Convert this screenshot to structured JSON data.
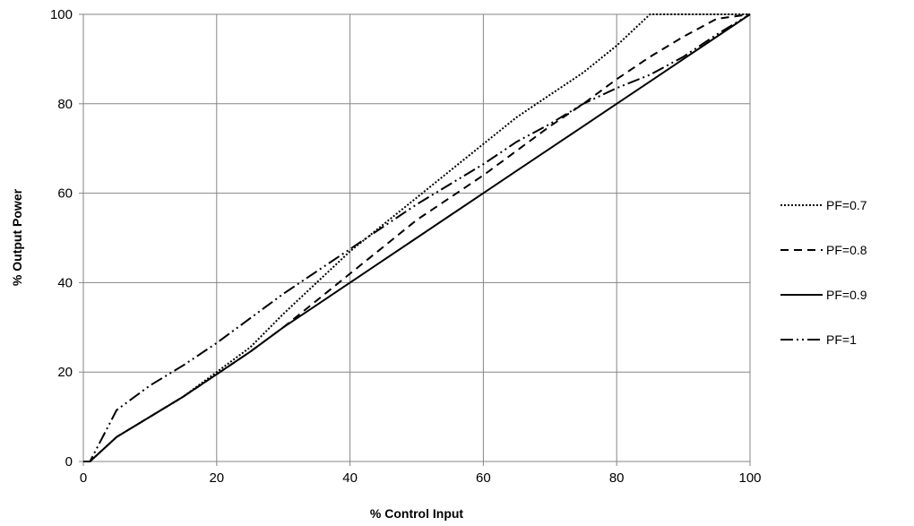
{
  "chart_data": {
    "type": "line",
    "xlabel": "% Control Input",
    "ylabel": "% Output Power",
    "xlim": [
      0,
      100
    ],
    "ylim": [
      0,
      100
    ],
    "xticks": [
      0,
      20,
      40,
      60,
      80,
      100
    ],
    "yticks": [
      0,
      20,
      40,
      60,
      80,
      100
    ],
    "grid": true,
    "legend_position": "right",
    "series": [
      {
        "name": "PF=0.7",
        "style": "dotted",
        "color": "#000000",
        "points": [
          [
            0,
            0
          ],
          [
            1,
            0
          ],
          [
            5,
            5.5
          ],
          [
            10,
            10
          ],
          [
            15,
            14.5
          ],
          [
            20,
            20
          ],
          [
            25,
            25.5
          ],
          [
            30,
            33
          ],
          [
            35,
            40
          ],
          [
            40,
            47
          ],
          [
            45,
            53
          ],
          [
            50,
            59
          ],
          [
            55,
            65
          ],
          [
            60,
            71
          ],
          [
            65,
            77
          ],
          [
            70,
            82
          ],
          [
            75,
            87
          ],
          [
            80,
            93
          ],
          [
            85,
            100
          ],
          [
            90,
            100
          ],
          [
            95,
            100
          ],
          [
            100,
            100
          ]
        ]
      },
      {
        "name": "PF=0.8",
        "style": "dashed",
        "color": "#000000",
        "points": [
          [
            0,
            0
          ],
          [
            1,
            0
          ],
          [
            5,
            5.5
          ],
          [
            10,
            10
          ],
          [
            15,
            14.5
          ],
          [
            20,
            19.5
          ],
          [
            25,
            24.5
          ],
          [
            30,
            30
          ],
          [
            35,
            36
          ],
          [
            40,
            42
          ],
          [
            45,
            48
          ],
          [
            50,
            54
          ],
          [
            55,
            59
          ],
          [
            60,
            64
          ],
          [
            65,
            69.5
          ],
          [
            70,
            75
          ],
          [
            75,
            80
          ],
          [
            80,
            85.5
          ],
          [
            85,
            90.5
          ],
          [
            90,
            95
          ],
          [
            95,
            99
          ],
          [
            100,
            100
          ]
        ]
      },
      {
        "name": "PF=0.9",
        "style": "solid",
        "color": "#000000",
        "points": [
          [
            0,
            0
          ],
          [
            1,
            0
          ],
          [
            5,
            5.5
          ],
          [
            10,
            10
          ],
          [
            15,
            14.5
          ],
          [
            20,
            19.5
          ],
          [
            25,
            24.5
          ],
          [
            30,
            30
          ],
          [
            35,
            35
          ],
          [
            40,
            40
          ],
          [
            45,
            45
          ],
          [
            50,
            50
          ],
          [
            55,
            55
          ],
          [
            60,
            60
          ],
          [
            65,
            65
          ],
          [
            70,
            70
          ],
          [
            75,
            75
          ],
          [
            80,
            80
          ],
          [
            85,
            85
          ],
          [
            90,
            90
          ],
          [
            95,
            95
          ],
          [
            100,
            100
          ]
        ]
      },
      {
        "name": "PF=1",
        "style": "dash-dot-dot",
        "color": "#000000",
        "points": [
          [
            0,
            0
          ],
          [
            1,
            0
          ],
          [
            5,
            11.5
          ],
          [
            10,
            17
          ],
          [
            15,
            21.5
          ],
          [
            20,
            26.5
          ],
          [
            25,
            32
          ],
          [
            30,
            37.5
          ],
          [
            35,
            42.5
          ],
          [
            40,
            47.5
          ],
          [
            45,
            52.5
          ],
          [
            50,
            57.5
          ],
          [
            55,
            62
          ],
          [
            60,
            66.5
          ],
          [
            65,
            71.5
          ],
          [
            70,
            75.5
          ],
          [
            75,
            80
          ],
          [
            80,
            83.5
          ],
          [
            85,
            86.5
          ],
          [
            90,
            90.5
          ],
          [
            95,
            95.5
          ],
          [
            100,
            100
          ]
        ]
      }
    ]
  }
}
